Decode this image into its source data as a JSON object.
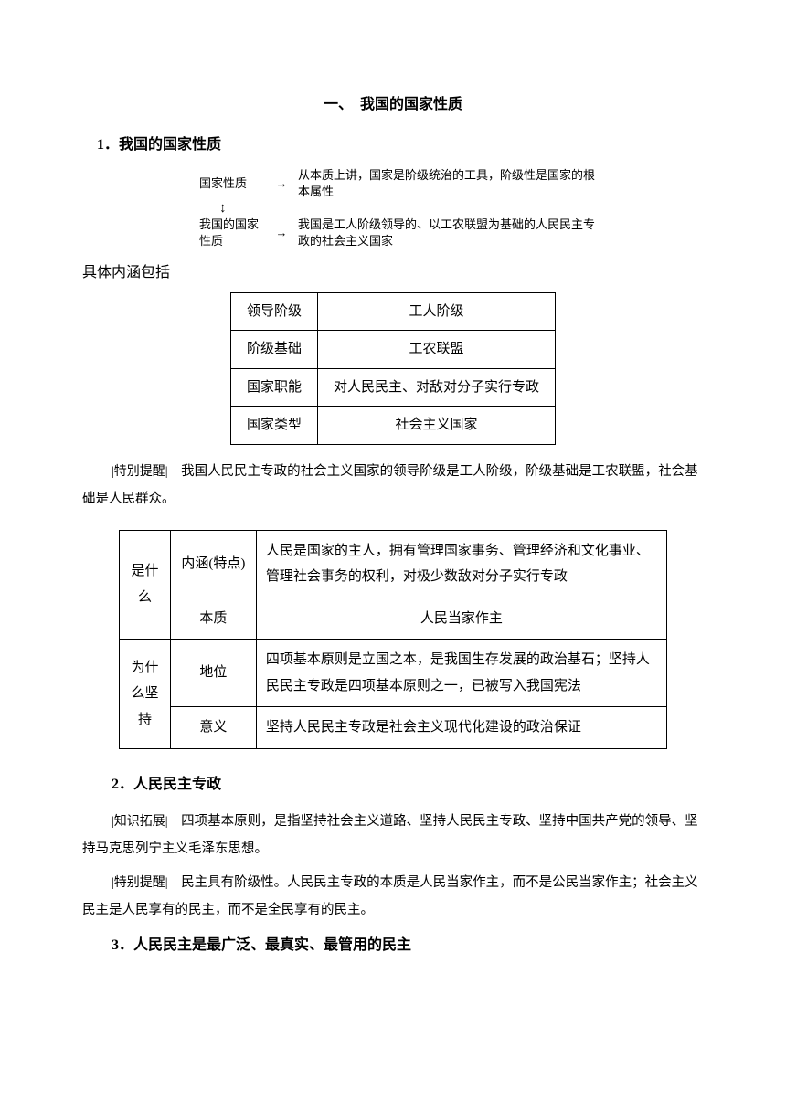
{
  "title": "一、　我国的国家性质",
  "section1": {
    "heading": "1．我国的国家性质",
    "diagram": {
      "row1_left": "国家性质",
      "row1_right": "从本质上讲，国家是阶级统治的工具，阶级性是国家的根本属性",
      "row2_left": "我国的国家性质",
      "row2_right": "我国是工人阶级领导的、以工农联盟为基础的人民民主专政的社会主义国家",
      "arrow": "→",
      "updown": "↕"
    },
    "intro": "具体内涵包括",
    "table1": [
      {
        "label": "领导阶级",
        "value": "工人阶级"
      },
      {
        "label": "阶级基础",
        "value": "工农联盟"
      },
      {
        "label": "国家职能",
        "value": "对人民民主、对敌对分子实行专政"
      },
      {
        "label": "国家类型",
        "value": "社会主义国家"
      }
    ],
    "note_label": "|特别提醒|",
    "note_text": "　我国人民民主专政的社会主义国家的领导阶级是工人阶级，阶级基础是工农联盟，社会基础是人民群众。"
  },
  "table2": {
    "row1_col1": "是什么",
    "row1_label": "内涵(特点)",
    "row1_text": "人民是国家的主人，拥有管理国家事务、管理经济和文化事业、管理社会事务的权利，对极少数敌对分子实行专政",
    "row2_label": "本质",
    "row2_text": "人民当家作主",
    "row3_col1": "为什么坚持",
    "row3_label": "地位",
    "row3_text": "四项基本原则是立国之本，是我国生存发展的政治基石；坚持人民民主专政是四项基本原则之一，已被写入我国宪法",
    "row4_label": "意义",
    "row4_text": "坚持人民民主专政是社会主义现代化建设的政治保证"
  },
  "section2": {
    "heading": "2．人民民主专政",
    "note1_label": "|知识拓展|",
    "note1_text": "　四项基本原则，是指坚持社会主义道路、坚持人民民主专政、坚持中国共产党的领导、坚持马克思列宁主义毛泽东思想。",
    "note2_label": "|特别提醒|",
    "note2_text": "　民主具有阶级性。人民民主专政的本质是人民当家作主，而不是公民当家作主；社会主义民主是人民享有的民主，而不是全民享有的民主。"
  },
  "section3": {
    "heading": "3．人民民主是最广泛、最真实、最管用的民主"
  }
}
